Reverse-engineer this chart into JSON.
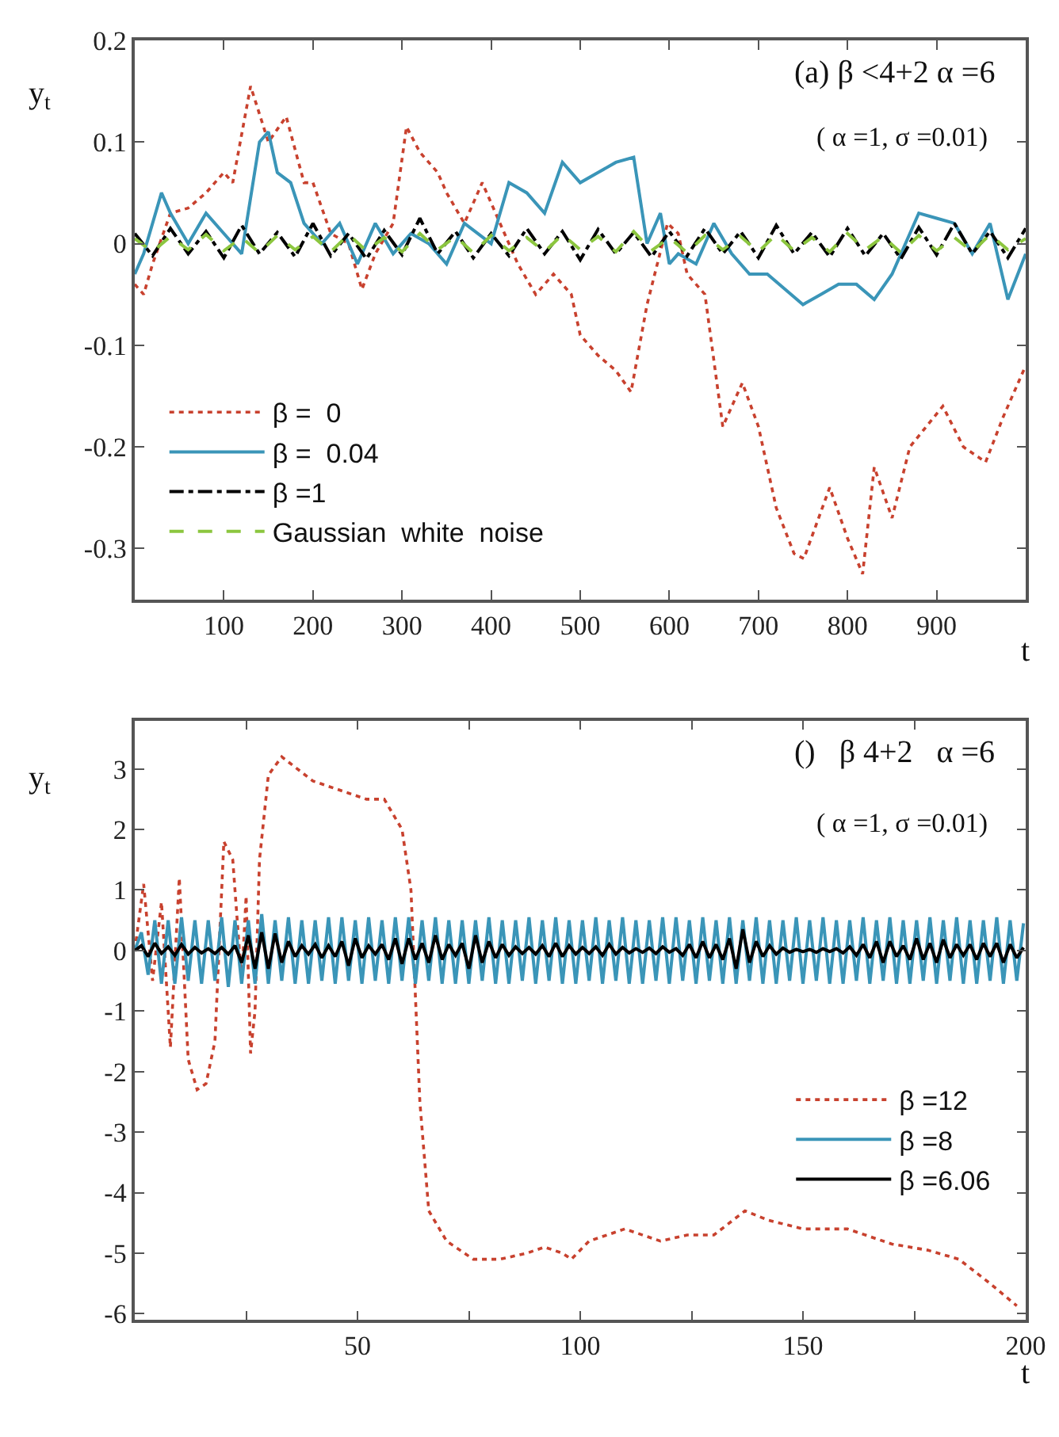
{
  "chart_data": [
    {
      "type": "line",
      "title": "(a) β <4+2 α =6",
      "subtitle": "( α =1, σ =0.01)",
      "xlabel": "t",
      "ylabel": "y$_{t}$",
      "xlim": [
        0,
        1000
      ],
      "ylim": [
        -0.35,
        0.2
      ],
      "xticks": [
        100,
        200,
        300,
        400,
        500,
        600,
        700,
        800,
        900
      ],
      "yticks": [
        -0.3,
        -0.2,
        -0.1,
        0,
        0.1,
        0.2
      ],
      "legend": "bottom left",
      "x": [
        0,
        20,
        40,
        60,
        80,
        100,
        120,
        140,
        160,
        180,
        200,
        220,
        240,
        260,
        280,
        300,
        320,
        340,
        360,
        380,
        400,
        420,
        440,
        460,
        480,
        500,
        520,
        540,
        560,
        580,
        600,
        620,
        640,
        660,
        680,
        700,
        720,
        740,
        760,
        780,
        800,
        820,
        840,
        860,
        880,
        900,
        920,
        940,
        960,
        980,
        1000
      ],
      "series": [
        {
          "name": "β =  0",
          "color": "#c8412e",
          "line_style": "dotted",
          "x": [
            0,
            10,
            20,
            40,
            60,
            80,
            100,
            110,
            130,
            150,
            170,
            190,
            200,
            220,
            240,
            255,
            270,
            290,
            305,
            320,
            340,
            350,
            370,
            390,
            410,
            430,
            450,
            470,
            490,
            500,
            520,
            540,
            557,
            575,
            598,
            610,
            620,
            640,
            660,
            682,
            700,
            720,
            740,
            751,
            780,
            800,
            817,
            830,
            850,
            870,
            907,
            930,
            955,
            975,
            1000
          ],
          "values": [
            -0.04,
            -0.05,
            -0.02,
            0.03,
            0.035,
            0.05,
            0.07,
            0.06,
            0.155,
            0.1,
            0.125,
            0.06,
            0.06,
            0.01,
            0.0,
            -0.045,
            -0.01,
            0.02,
            0.115,
            0.09,
            0.07,
            0.05,
            0.02,
            0.06,
            0.02,
            -0.02,
            -0.05,
            -0.03,
            -0.05,
            -0.09,
            -0.11,
            -0.125,
            -0.146,
            -0.06,
            0.02,
            0.01,
            -0.03,
            -0.05,
            -0.18,
            -0.137,
            -0.18,
            -0.26,
            -0.305,
            -0.31,
            -0.24,
            -0.29,
            -0.325,
            -0.22,
            -0.27,
            -0.2,
            -0.16,
            -0.2,
            -0.215,
            -0.17,
            -0.12
          ]
        },
        {
          "name": "β =  0.04",
          "color": "#3a95b8",
          "line_style": "solid",
          "x": [
            0,
            10,
            30,
            40,
            60,
            80,
            100,
            120,
            140,
            150,
            160,
            175,
            190,
            210,
            230,
            250,
            270,
            290,
            310,
            330,
            350,
            370,
            400,
            420,
            440,
            460,
            480,
            500,
            520,
            540,
            560,
            575,
            590,
            600,
            610,
            630,
            650,
            670,
            690,
            710,
            730,
            750,
            770,
            790,
            810,
            830,
            850,
            870,
            880,
            900,
            920,
            940,
            960,
            980,
            1000
          ],
          "values": [
            -0.03,
            -0.01,
            0.05,
            0.03,
            0.0,
            0.03,
            0.01,
            -0.01,
            0.1,
            0.11,
            0.07,
            0.06,
            0.02,
            0.0,
            0.02,
            -0.02,
            0.02,
            -0.01,
            0.01,
            0.0,
            -0.02,
            0.02,
            0.0,
            0.06,
            0.05,
            0.03,
            0.08,
            0.06,
            0.07,
            0.08,
            0.085,
            0.0,
            0.03,
            -0.02,
            -0.01,
            -0.02,
            0.02,
            -0.01,
            -0.03,
            -0.03,
            -0.045,
            -0.06,
            -0.05,
            -0.04,
            -0.04,
            -0.055,
            -0.03,
            0.01,
            0.03,
            0.025,
            0.02,
            -0.01,
            0.02,
            -0.055,
            -0.01
          ]
        },
        {
          "name": "β =1",
          "color": "#000000",
          "line_style": "dashdot",
          "values": [
            0.01,
            -0.012,
            0.015,
            -0.01,
            0.012,
            -0.014,
            0.018,
            -0.01,
            0.011,
            -0.013,
            0.02,
            -0.012,
            0.01,
            -0.015,
            0.013,
            -0.011,
            0.025,
            -0.01,
            0.012,
            -0.014,
            0.01,
            -0.012,
            0.015,
            -0.01,
            0.012,
            -0.016,
            0.014,
            -0.01,
            0.011,
            -0.013,
            0.012,
            -0.012,
            0.015,
            -0.01,
            0.012,
            -0.014,
            0.018,
            -0.01,
            0.011,
            -0.013,
            0.015,
            -0.012,
            0.01,
            -0.015,
            0.016,
            -0.011,
            0.02,
            -0.01,
            0.012,
            -0.014,
            0.015
          ]
        },
        {
          "name": "Gaussian  white  noise",
          "color": "#8cc63f",
          "line_style": "dashed",
          "values": [
            0.005,
            -0.008,
            0.007,
            -0.006,
            0.009,
            -0.007,
            0.006,
            -0.009,
            0.008,
            -0.006,
            0.007,
            -0.008,
            0.009,
            -0.007,
            0.006,
            -0.008,
            0.01,
            -0.006,
            0.007,
            -0.009,
            0.008,
            -0.007,
            0.006,
            -0.008,
            0.009,
            -0.006,
            0.007,
            -0.008,
            0.012,
            -0.007,
            0.006,
            -0.009,
            0.008,
            -0.006,
            0.007,
            -0.008,
            0.009,
            -0.007,
            0.006,
            -0.008,
            0.01,
            -0.006,
            0.007,
            -0.009,
            0.008,
            -0.007,
            0.006,
            -0.008,
            0.009,
            -0.006,
            0.005
          ]
        }
      ]
    },
    {
      "type": "line",
      "title": "()   β 4+2   α =6",
      "subtitle": "( α =1, σ =0.01)",
      "xlabel": "t",
      "ylabel": "y$_{t}$",
      "xlim": [
        0,
        200
      ],
      "ylim": [
        -6.1,
        3.8
      ],
      "xticks": [
        {
          "value": 25,
          "label": null
        },
        50,
        {
          "value": 75,
          "label": null
        },
        100,
        {
          "value": 125,
          "label": null
        },
        150,
        {
          "value": 175,
          "label": null
        },
        200
      ],
      "yticks": [
        -6,
        -5,
        -4,
        -3,
        -2,
        -1,
        0,
        1,
        2,
        3
      ],
      "legend": "right",
      "x": [
        0,
        1.5,
        3,
        4.5,
        6,
        7.5,
        9,
        10.5,
        12,
        13.5,
        15,
        16.5,
        18,
        19.5,
        21,
        22.5,
        24,
        25.5,
        27,
        28.5,
        30,
        31.5,
        33,
        34.5,
        36,
        37.5,
        39,
        40.5,
        42,
        43.5,
        45,
        46.5,
        48,
        49.5,
        51,
        52.5,
        54,
        55.5,
        57,
        58.5,
        60,
        61.5,
        63,
        64.5,
        66,
        67.5,
        69,
        70.5,
        72,
        73.5,
        75,
        76.5,
        78,
        79.5,
        81,
        82.5,
        84,
        85.5,
        87,
        88.5,
        90,
        91.5,
        93,
        94.5,
        96,
        97.5,
        99,
        100.5,
        102,
        103.5,
        105,
        106.5,
        108,
        109.5,
        111,
        112.5,
        114,
        115.5,
        117,
        118.5,
        120,
        121.5,
        123,
        124.5,
        126,
        127.5,
        129,
        130.5,
        132,
        133.5,
        135,
        136.5,
        138,
        139.5,
        141,
        142.5,
        144,
        145.5,
        147,
        148.5,
        150,
        151.5,
        153,
        154.5,
        156,
        157.5,
        159,
        160.5,
        162,
        163.5,
        165,
        166.5,
        168,
        169.5,
        171,
        172.5,
        174,
        175.5,
        177,
        178.5,
        180,
        181.5,
        183,
        184.5,
        186,
        187.5,
        189,
        190.5,
        192,
        193.5,
        195,
        196.5,
        198,
        199.5
      ],
      "series": [
        {
          "name": "β =12",
          "color": "#c8412e",
          "line_style": "dotted",
          "x": [
            0,
            2,
            4,
            6,
            8,
            10,
            12,
            14,
            16,
            18,
            20,
            22,
            24,
            25,
            26,
            27,
            28,
            30,
            33,
            40,
            48,
            52,
            56,
            60,
            62,
            64,
            66,
            70,
            76,
            82,
            88,
            92,
            96,
            98,
            102,
            110,
            118,
            124,
            130,
            137,
            142,
            150,
            160,
            170,
            178,
            185,
            192,
            198
          ],
          "values": [
            0,
            1.1,
            -0.5,
            0.8,
            -1.6,
            1.2,
            -1.8,
            -2.3,
            -2.2,
            -1.5,
            1.8,
            1.5,
            -0.5,
            0.9,
            -1.7,
            -1.0,
            1.5,
            2.9,
            3.2,
            2.8,
            2.6,
            2.5,
            2.5,
            2.0,
            1.0,
            -2.5,
            -4.3,
            -4.8,
            -5.1,
            -5.1,
            -5.0,
            -4.9,
            -5.0,
            -5.1,
            -4.8,
            -4.6,
            -4.8,
            -4.7,
            -4.7,
            -4.3,
            -4.45,
            -4.6,
            -4.6,
            -4.85,
            -4.95,
            -5.1,
            -5.5,
            -5.87
          ]
        },
        {
          "name": "β =8",
          "color": "#3a95b8",
          "line_style": "solid",
          "values": [
            0,
            0.3,
            -0.4,
            0.5,
            -0.55,
            0.5,
            -0.55,
            0.55,
            -0.5,
            0.5,
            -0.55,
            0.5,
            -0.5,
            0.55,
            -0.6,
            0.5,
            -0.55,
            0.5,
            -0.55,
            0.6,
            -0.55,
            0.5,
            -0.5,
            0.55,
            -0.55,
            0.5,
            -0.55,
            0.5,
            -0.5,
            0.55,
            -0.55,
            0.55,
            -0.5,
            0.5,
            -0.55,
            0.55,
            -0.5,
            0.5,
            -0.55,
            0.55,
            -0.5,
            0.55,
            -0.55,
            0.5,
            -0.5,
            0.55,
            -0.55,
            0.5,
            -0.55,
            0.5,
            -0.55,
            0.5,
            -0.5,
            0.55,
            -0.55,
            0.5,
            -0.55,
            0.5,
            -0.5,
            0.55,
            -0.55,
            0.5,
            -0.5,
            0.55,
            -0.55,
            0.5,
            -0.55,
            0.5,
            -0.5,
            0.55,
            -0.55,
            0.5,
            -0.5,
            0.55,
            -0.55,
            0.5,
            -0.55,
            0.5,
            -0.5,
            0.55,
            -0.55,
            0.55,
            -0.5,
            0.5,
            -0.55,
            0.55,
            -0.5,
            0.5,
            -0.55,
            0.55,
            -0.55,
            0.5,
            -0.5,
            0.55,
            -0.55,
            0.5,
            -0.55,
            0.5,
            -0.5,
            0.55,
            -0.55,
            0.5,
            -0.5,
            0.55,
            -0.55,
            0.5,
            -0.55,
            0.5,
            -0.5,
            0.55,
            -0.55,
            0.5,
            -0.5,
            0.55,
            -0.55,
            0.5,
            -0.55,
            0.5,
            -0.5,
            0.55,
            -0.55,
            0.5,
            -0.5,
            0.55,
            -0.55,
            0.5,
            -0.55,
            0.5,
            -0.5,
            0.55,
            -0.55,
            0.5,
            -0.5,
            0.45
          ]
        },
        {
          "name": "β =6.06",
          "color": "#000000",
          "line_style": "solid",
          "values": [
            0,
            0.08,
            -0.1,
            0.12,
            -0.05,
            0.06,
            -0.08,
            0.1,
            -0.06,
            0.05,
            -0.04,
            0.03,
            -0.05,
            0.05,
            -0.06,
            0.08,
            -0.2,
            0.25,
            -0.3,
            0.3,
            -0.3,
            0.28,
            -0.2,
            0.15,
            -0.1,
            0.08,
            -0.06,
            0.1,
            -0.12,
            0.08,
            -0.1,
            0.15,
            -0.25,
            0.2,
            -0.12,
            0.08,
            -0.06,
            0.1,
            -0.15,
            0.2,
            -0.22,
            0.2,
            -0.15,
            0.12,
            -0.2,
            0.25,
            -0.15,
            0.1,
            -0.08,
            0.12,
            -0.3,
            0.25,
            -0.2,
            0.15,
            -0.12,
            0.1,
            -0.08,
            0.06,
            -0.05,
            0.05,
            -0.06,
            0.08,
            -0.1,
            0.12,
            -0.1,
            0.08,
            -0.06,
            0.05,
            -0.05,
            0.06,
            -0.08,
            0.1,
            -0.06,
            0.05,
            -0.04,
            0.03,
            -0.03,
            0.04,
            -0.05,
            0.06,
            -0.03,
            0.03,
            -0.08,
            0.1,
            -0.12,
            0.15,
            -0.12,
            0.1,
            -0.15,
            0.2,
            -0.3,
            0.35,
            -0.2,
            0.15,
            -0.1,
            0.08,
            -0.06,
            0.04,
            -0.03,
            0.02,
            -0.02,
            0.02,
            -0.03,
            0.03,
            -0.02,
            0.03,
            -0.04,
            0.06,
            -0.08,
            0.1,
            -0.12,
            0.15,
            -0.2,
            0.15,
            -0.1,
            0.08,
            -0.15,
            0.2,
            -0.15,
            0.12,
            -0.2,
            0.18,
            -0.12,
            0.1,
            -0.08,
            0.1,
            -0.15,
            0.12,
            -0.1,
            0.12,
            -0.2,
            0.1,
            -0.12,
            0.05
          ]
        }
      ]
    }
  ]
}
